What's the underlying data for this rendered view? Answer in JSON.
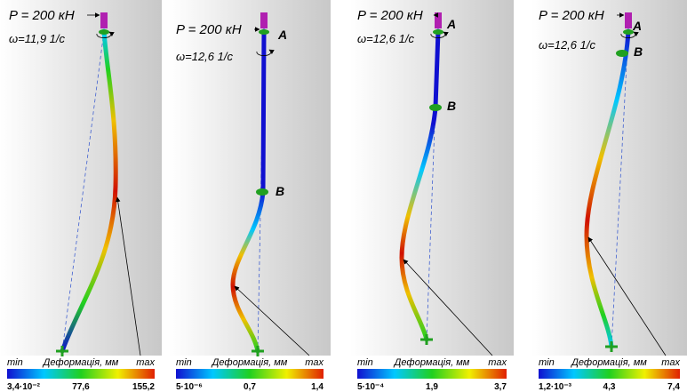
{
  "panels": [
    {
      "force": "P = 200 кН",
      "omega": "ω=11,9   1/с",
      "colorbar": {
        "min": "min",
        "title": "Деформація, мм",
        "max": "max",
        "ticks": [
          "3,4·10⁻²",
          "77,6",
          "155,2"
        ]
      }
    },
    {
      "force": "P = 200 кН",
      "omega": "ω=12,6   1/с",
      "point_a": "A",
      "point_b": "B",
      "colorbar": {
        "min": "min",
        "title": "Деформація, мм",
        "max": "max",
        "ticks": [
          "5·10⁻⁶",
          "0,7",
          "1,4"
        ]
      }
    },
    {
      "force": "P = 200 кН",
      "omega": "ω=12,6   1/с",
      "point_a": "A",
      "point_b": "B",
      "colorbar": {
        "min": "min",
        "title": "Деформація, мм",
        "max": "max",
        "ticks": [
          "5·10⁻⁴",
          "1,9",
          "3,7"
        ]
      }
    },
    {
      "force": "P = 200 кН",
      "omega": "ω=12,6   1/с",
      "point_a": "A",
      "point_b": "B",
      "colorbar": {
        "min": "min",
        "title": "Деформація, мм",
        "max": "max",
        "ticks": [
          "1,2·10⁻³",
          "4,3",
          "7,4"
        ]
      }
    }
  ]
}
